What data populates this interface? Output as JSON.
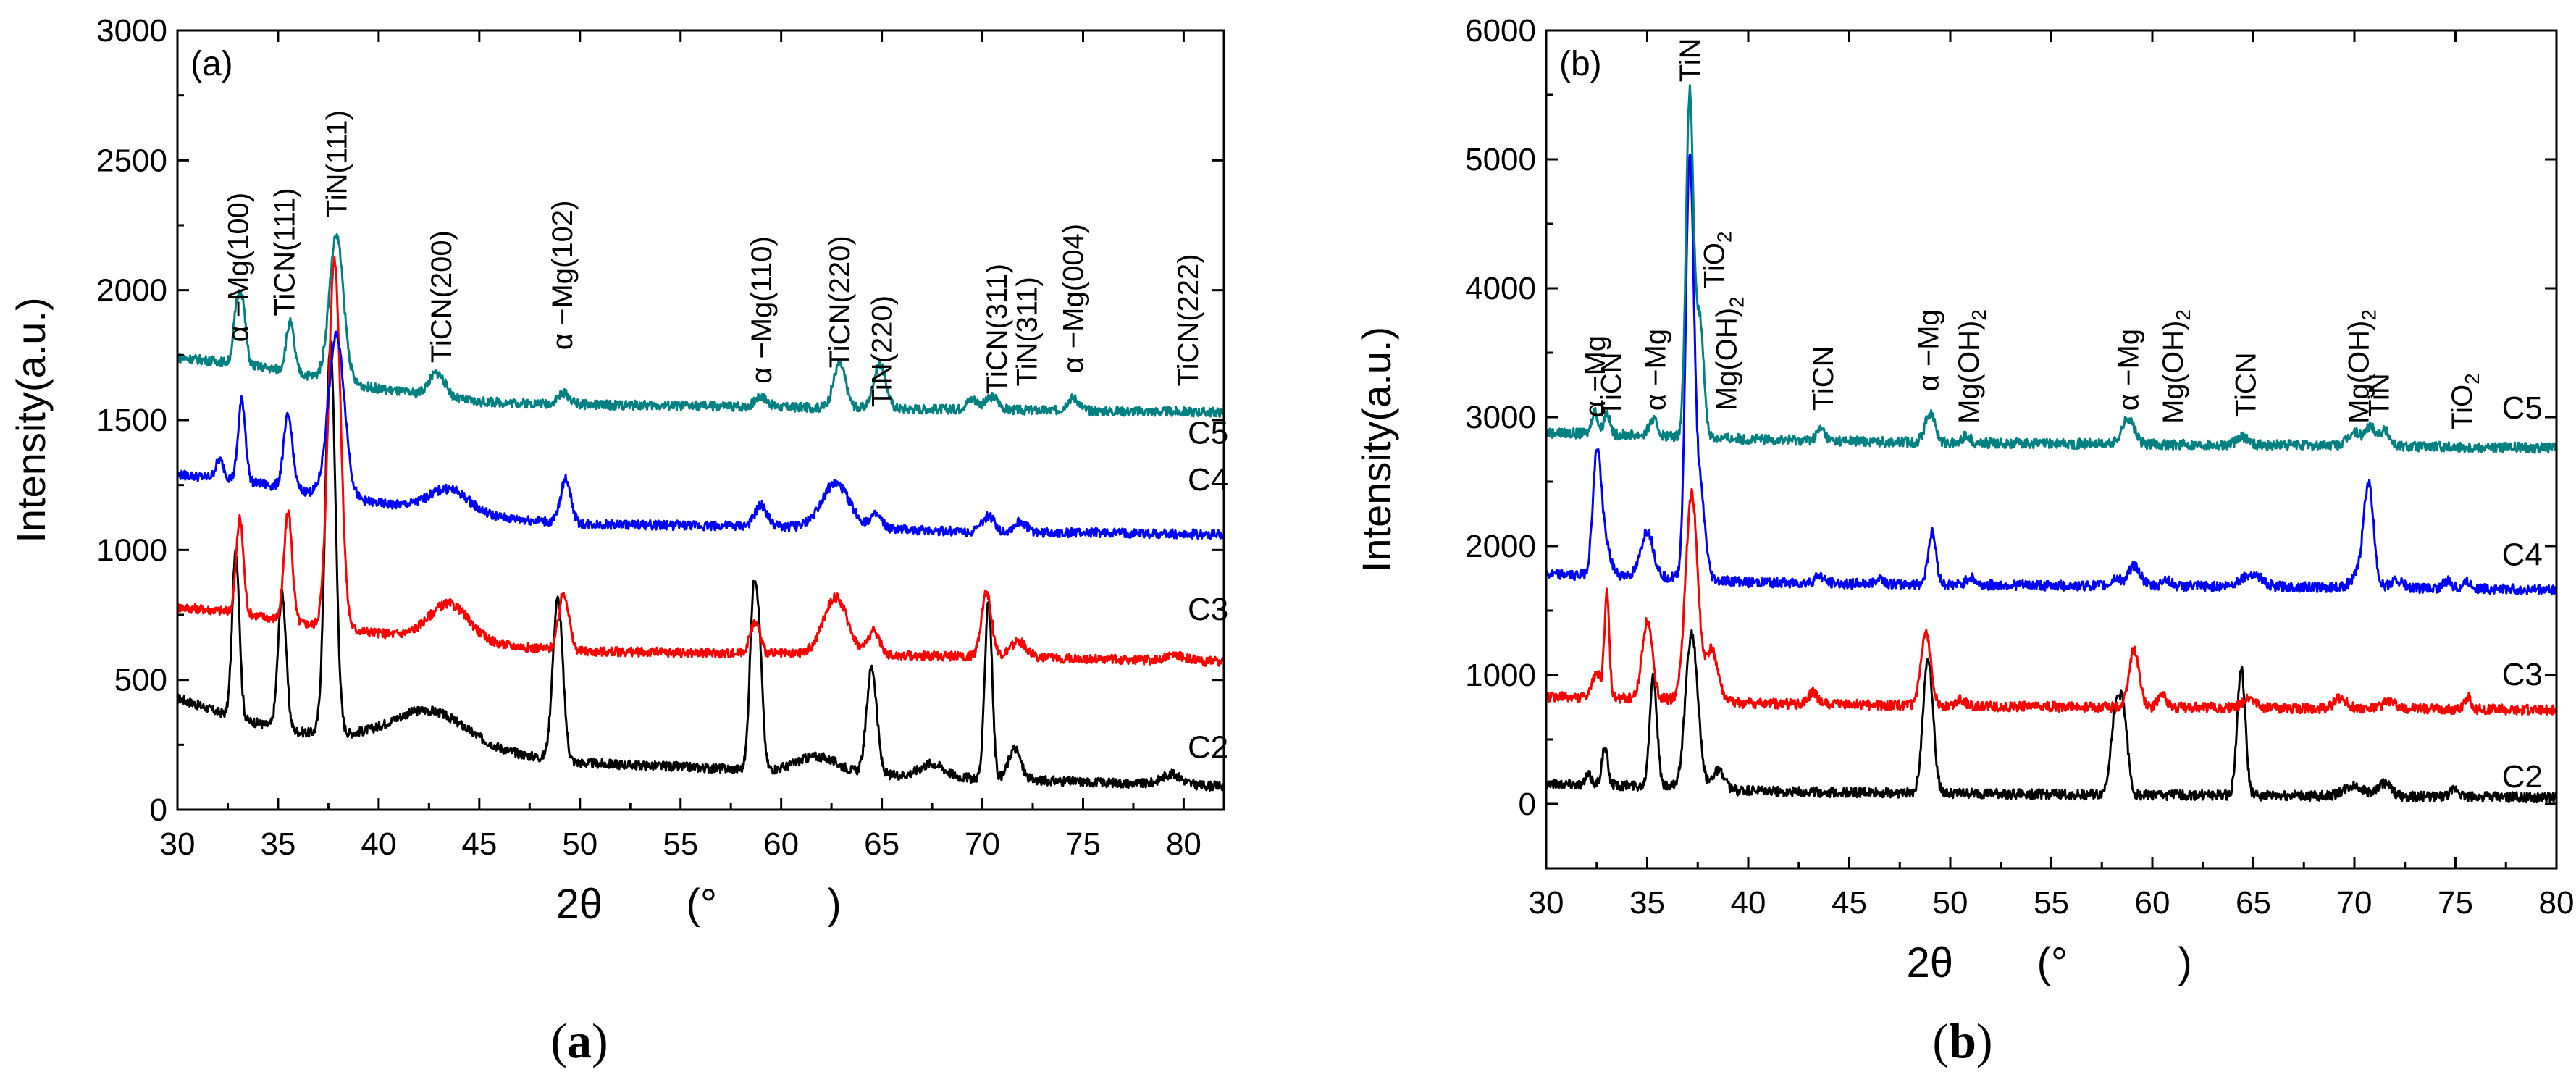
{
  "figure": {
    "caption_a": {
      "open": "(",
      "letter": "a",
      "close": ")"
    },
    "caption_b": {
      "open": "(",
      "letter": "b",
      "close": ")"
    }
  },
  "colors": {
    "C2": "#000000",
    "C3": "#ff0000",
    "C4": "#0000ff",
    "C5": "#008080"
  },
  "chart_data": [
    {
      "id": "a",
      "type": "line",
      "panel_label": "(a)",
      "xlabel_main": "2θ",
      "xlabel_open": "(°",
      "xlabel_close": ")",
      "ylabel": "Intensity(a.u.)",
      "xlim": [
        30,
        82
      ],
      "ylim": [
        0,
        3000
      ],
      "xticks": [
        30,
        35,
        40,
        45,
        50,
        55,
        60,
        65,
        70,
        75,
        80
      ],
      "yticks": [
        0,
        500,
        1000,
        1500,
        2000,
        2500,
        3000
      ],
      "grid": false,
      "series": [
        {
          "name": "C2",
          "label_x": 80.2,
          "label_y": 200,
          "baseline": [
            [
              30,
              430
            ],
            [
              33,
              350
            ],
            [
              36,
              300
            ],
            [
              39,
              280
            ],
            [
              44,
              240
            ],
            [
              50,
              180
            ],
            [
              60,
              150
            ],
            [
              70,
              120
            ],
            [
              82,
              90
            ]
          ],
          "peaks": [
            [
              32.9,
              640,
              0.18
            ],
            [
              35.2,
              520,
              0.2
            ],
            [
              37.6,
              1500,
              0.25
            ],
            [
              42.5,
              130,
              1.8
            ],
            [
              48.9,
              620,
              0.25
            ],
            [
              58.6,
              580,
              0.18
            ],
            [
              58.9,
              450,
              0.18
            ],
            [
              61.8,
              60,
              1.0
            ],
            [
              64.5,
              410,
              0.25
            ],
            [
              67.5,
              50,
              0.6
            ],
            [
              70.3,
              690,
              0.18
            ],
            [
              71.6,
              120,
              0.3
            ],
            [
              79.4,
              40,
              0.5
            ]
          ]
        },
        {
          "name": "C3",
          "label_x": 80.2,
          "label_y": 730,
          "baseline": [
            [
              30,
              780
            ],
            [
              33,
              760
            ],
            [
              36,
              720
            ],
            [
              40,
              680
            ],
            [
              45,
              640
            ],
            [
              50,
              610
            ],
            [
              60,
              600
            ],
            [
              70,
              590
            ],
            [
              82,
              570
            ]
          ],
          "peaks": [
            [
              33.1,
              360,
              0.18
            ],
            [
              35.5,
              420,
              0.2
            ],
            [
              37.8,
              1420,
              0.3
            ],
            [
              43.5,
              140,
              1.0
            ],
            [
              49.2,
              220,
              0.25
            ],
            [
              58.7,
              120,
              0.25
            ],
            [
              62.7,
              220,
              0.6
            ],
            [
              64.6,
              90,
              0.3
            ],
            [
              70.2,
              250,
              0.25
            ],
            [
              71.8,
              60,
              0.4
            ],
            [
              79.6,
              20,
              0.5
            ]
          ]
        },
        {
          "name": "C4",
          "label_x": 80.2,
          "label_y": 1230,
          "baseline": [
            [
              30,
              1290
            ],
            [
              33,
              1270
            ],
            [
              36,
              1230
            ],
            [
              40,
              1180
            ],
            [
              45,
              1130
            ],
            [
              50,
              1100
            ],
            [
              60,
              1090
            ],
            [
              70,
              1070
            ],
            [
              82,
              1060
            ]
          ],
          "peaks": [
            [
              32.1,
              70,
              0.2
            ],
            [
              33.2,
              310,
              0.18
            ],
            [
              35.5,
              280,
              0.22
            ],
            [
              37.9,
              620,
              0.4
            ],
            [
              43.5,
              90,
              1.0
            ],
            [
              49.3,
              170,
              0.25
            ],
            [
              59.0,
              80,
              0.3
            ],
            [
              62.7,
              170,
              0.7
            ],
            [
              64.7,
              50,
              0.3
            ],
            [
              70.3,
              60,
              0.3
            ],
            [
              71.9,
              40,
              0.3
            ]
          ]
        },
        {
          "name": "C5",
          "label_x": 80.2,
          "label_y": 1410,
          "baseline": [
            [
              30,
              1740
            ],
            [
              33,
              1720
            ],
            [
              36,
              1680
            ],
            [
              40,
              1620
            ],
            [
              45,
              1570
            ],
            [
              50,
              1560
            ],
            [
              60,
              1550
            ],
            [
              70,
              1540
            ],
            [
              82,
              1530
            ]
          ],
          "peaks": [
            [
              32.9,
              150,
              0.15
            ],
            [
              33.2,
              250,
              0.18
            ],
            [
              35.6,
              190,
              0.2
            ],
            [
              37.9,
              560,
              0.35
            ],
            [
              42.9,
              90,
              0.4
            ],
            [
              49.2,
              40,
              0.3
            ],
            [
              59.0,
              40,
              0.3
            ],
            [
              62.9,
              170,
              0.3
            ],
            [
              64.9,
              170,
              0.3
            ],
            [
              69.5,
              40,
              0.3
            ],
            [
              70.5,
              50,
              0.3
            ],
            [
              74.5,
              50,
              0.3
            ]
          ]
        }
      ],
      "annotations": [
        {
          "text": "α −Mg(100)",
          "x": 33.0,
          "y": 1800
        },
        {
          "text": "TiCN(111)",
          "x": 35.3,
          "y": 1900
        },
        {
          "text": "TiN(111)",
          "x": 37.9,
          "y": 2280
        },
        {
          "text": "TiCN(200)",
          "x": 43.1,
          "y": 1720
        },
        {
          "text": "α −Mg(102)",
          "x": 49.1,
          "y": 1770
        },
        {
          "text": "α −Mg(110)",
          "x": 59.0,
          "y": 1640
        },
        {
          "text": "TiCN(220)",
          "x": 62.9,
          "y": 1700
        },
        {
          "text": "TiN(220)",
          "x": 65.0,
          "y": 1550
        },
        {
          "text": "TiCN(311)",
          "x": 70.7,
          "y": 1600
        },
        {
          "text": "TiN(311)",
          "x": 72.2,
          "y": 1630
        },
        {
          "text": "α −Mg(004)",
          "x": 74.5,
          "y": 1680
        },
        {
          "text": "TiCN(222)",
          "x": 80.2,
          "y": 1630
        }
      ]
    },
    {
      "id": "b",
      "type": "line",
      "panel_label": "(b)",
      "xlabel_main": "2θ",
      "xlabel_open": "(°",
      "xlabel_close": ")",
      "ylabel": "Intensity(a.u.)",
      "xlim": [
        30,
        80
      ],
      "ylim": [
        -500,
        6000
      ],
      "xticks": [
        30,
        35,
        40,
        45,
        50,
        55,
        60,
        65,
        70,
        75,
        80
      ],
      "yticks": [
        0,
        1000,
        2000,
        3000,
        4000,
        5000,
        6000
      ],
      "grid": false,
      "series": [
        {
          "name": "C2",
          "label_x": 77.3,
          "label_y": 130,
          "baseline": [
            [
              30,
              160
            ],
            [
              35,
              140
            ],
            [
              40,
              100
            ],
            [
              50,
              80
            ],
            [
              60,
              70
            ],
            [
              70,
              60
            ],
            [
              80,
              50
            ]
          ],
          "peaks": [
            [
              32.1,
              70,
              0.15
            ],
            [
              32.9,
              280,
              0.15
            ],
            [
              35.3,
              860,
              0.18
            ],
            [
              37.2,
              1200,
              0.3
            ],
            [
              38.5,
              150,
              0.3
            ],
            [
              48.9,
              1050,
              0.25
            ],
            [
              58.2,
              650,
              0.25
            ],
            [
              58.6,
              500,
              0.2
            ],
            [
              64.4,
              980,
              0.2
            ],
            [
              70.0,
              80,
              0.5
            ],
            [
              71.5,
              100,
              0.3
            ],
            [
              75.0,
              60,
              0.2
            ]
          ]
        },
        {
          "name": "C3",
          "label_x": 77.3,
          "label_y": 920,
          "baseline": [
            [
              30,
              830
            ],
            [
              35,
              820
            ],
            [
              40,
              780
            ],
            [
              50,
              760
            ],
            [
              60,
              750
            ],
            [
              70,
              740
            ],
            [
              80,
              730
            ]
          ],
          "peaks": [
            [
              32.5,
              200,
              0.2
            ],
            [
              33.0,
              800,
              0.12
            ],
            [
              35.0,
              600,
              0.25
            ],
            [
              37.2,
              1600,
              0.3
            ],
            [
              38.2,
              400,
              0.3
            ],
            [
              43.2,
              100,
              0.2
            ],
            [
              48.8,
              550,
              0.25
            ],
            [
              50.5,
              60,
              0.2
            ],
            [
              59.1,
              450,
              0.25
            ],
            [
              60.5,
              100,
              0.2
            ],
            [
              64.8,
              80,
              0.3
            ],
            [
              69.3,
              80,
              0.3
            ],
            [
              71.7,
              60,
              0.3
            ],
            [
              75.6,
              100,
              0.15
            ]
          ]
        },
        {
          "name": "C4",
          "label_x": 77.3,
          "label_y": 1850,
          "baseline": [
            [
              30,
              1780
            ],
            [
              35,
              1770
            ],
            [
              40,
              1720
            ],
            [
              50,
              1700
            ],
            [
              60,
              1690
            ],
            [
              70,
              1680
            ],
            [
              80,
              1660
            ]
          ],
          "peaks": [
            [
              32.5,
              800,
              0.2
            ],
            [
              32.8,
              300,
              0.3
            ],
            [
              35.0,
              350,
              0.3
            ],
            [
              37.1,
              3200,
              0.2
            ],
            [
              37.6,
              700,
              0.25
            ],
            [
              43.5,
              60,
              0.2
            ],
            [
              46.5,
              50,
              0.2
            ],
            [
              49.1,
              400,
              0.2
            ],
            [
              51.0,
              60,
              0.2
            ],
            [
              58.2,
              60,
              0.2
            ],
            [
              59.1,
              160,
              0.3
            ],
            [
              60.7,
              60,
              0.2
            ],
            [
              64.9,
              100,
              0.5
            ],
            [
              70.1,
              80,
              0.3
            ],
            [
              70.7,
              800,
              0.25
            ],
            [
              72.1,
              60,
              0.3
            ],
            [
              74.6,
              60,
              0.2
            ],
            [
              75.6,
              60,
              0.2
            ]
          ]
        },
        {
          "name": "C5",
          "label_x": 77.3,
          "label_y": 2990,
          "baseline": [
            [
              30,
              2880
            ],
            [
              35,
              2860
            ],
            [
              40,
              2830
            ],
            [
              50,
              2800
            ],
            [
              60,
              2790
            ],
            [
              70,
              2780
            ],
            [
              80,
              2760
            ]
          ],
          "peaks": [
            [
              32.4,
              180,
              0.15
            ],
            [
              33.0,
              170,
              0.15
            ],
            [
              35.3,
              120,
              0.2
            ],
            [
              37.1,
              2650,
              0.18
            ],
            [
              37.6,
              900,
              0.2
            ],
            [
              43.6,
              90,
              0.2
            ],
            [
              49.0,
              230,
              0.25
            ],
            [
              50.8,
              60,
              0.2
            ],
            [
              58.8,
              200,
              0.3
            ],
            [
              64.5,
              60,
              0.3
            ],
            [
              70.0,
              100,
              0.3
            ],
            [
              70.8,
              150,
              0.25
            ],
            [
              71.5,
              120,
              0.25
            ]
          ]
        }
      ],
      "annotations": [
        {
          "text": "α −Mg",
          "x": 32.4,
          "y": 3000
        },
        {
          "text": "TiCN",
          "x": 33.2,
          "y": 3000
        },
        {
          "text": "α −Mg",
          "x": 35.4,
          "y": 3050
        },
        {
          "text": "TiN",
          "x": 37.1,
          "y": 5600
        },
        {
          "text": "TiO",
          "sub": "2",
          "x": 38.3,
          "y": 4000
        },
        {
          "text": "Mg(OH)",
          "sub": "2",
          "x": 38.9,
          "y": 3050
        },
        {
          "text": "TiCN",
          "x": 43.7,
          "y": 3050
        },
        {
          "text": "α −Mg",
          "x": 48.9,
          "y": 3200
        },
        {
          "text": "Mg(OH)",
          "sub": "2",
          "x": 50.9,
          "y": 2950
        },
        {
          "text": "α −Mg",
          "x": 58.8,
          "y": 3050
        },
        {
          "text": "Mg(OH)",
          "sub": "2",
          "x": 61.0,
          "y": 2950
        },
        {
          "text": "TiCN",
          "x": 64.6,
          "y": 3000
        },
        {
          "text": "Mg(OH)",
          "sub": "2",
          "x": 70.2,
          "y": 2950
        },
        {
          "text": "TiN",
          "x": 71.2,
          "y": 3000
        },
        {
          "text": "TiO",
          "sub": "2",
          "x": 75.3,
          "y": 2900
        }
      ]
    }
  ]
}
